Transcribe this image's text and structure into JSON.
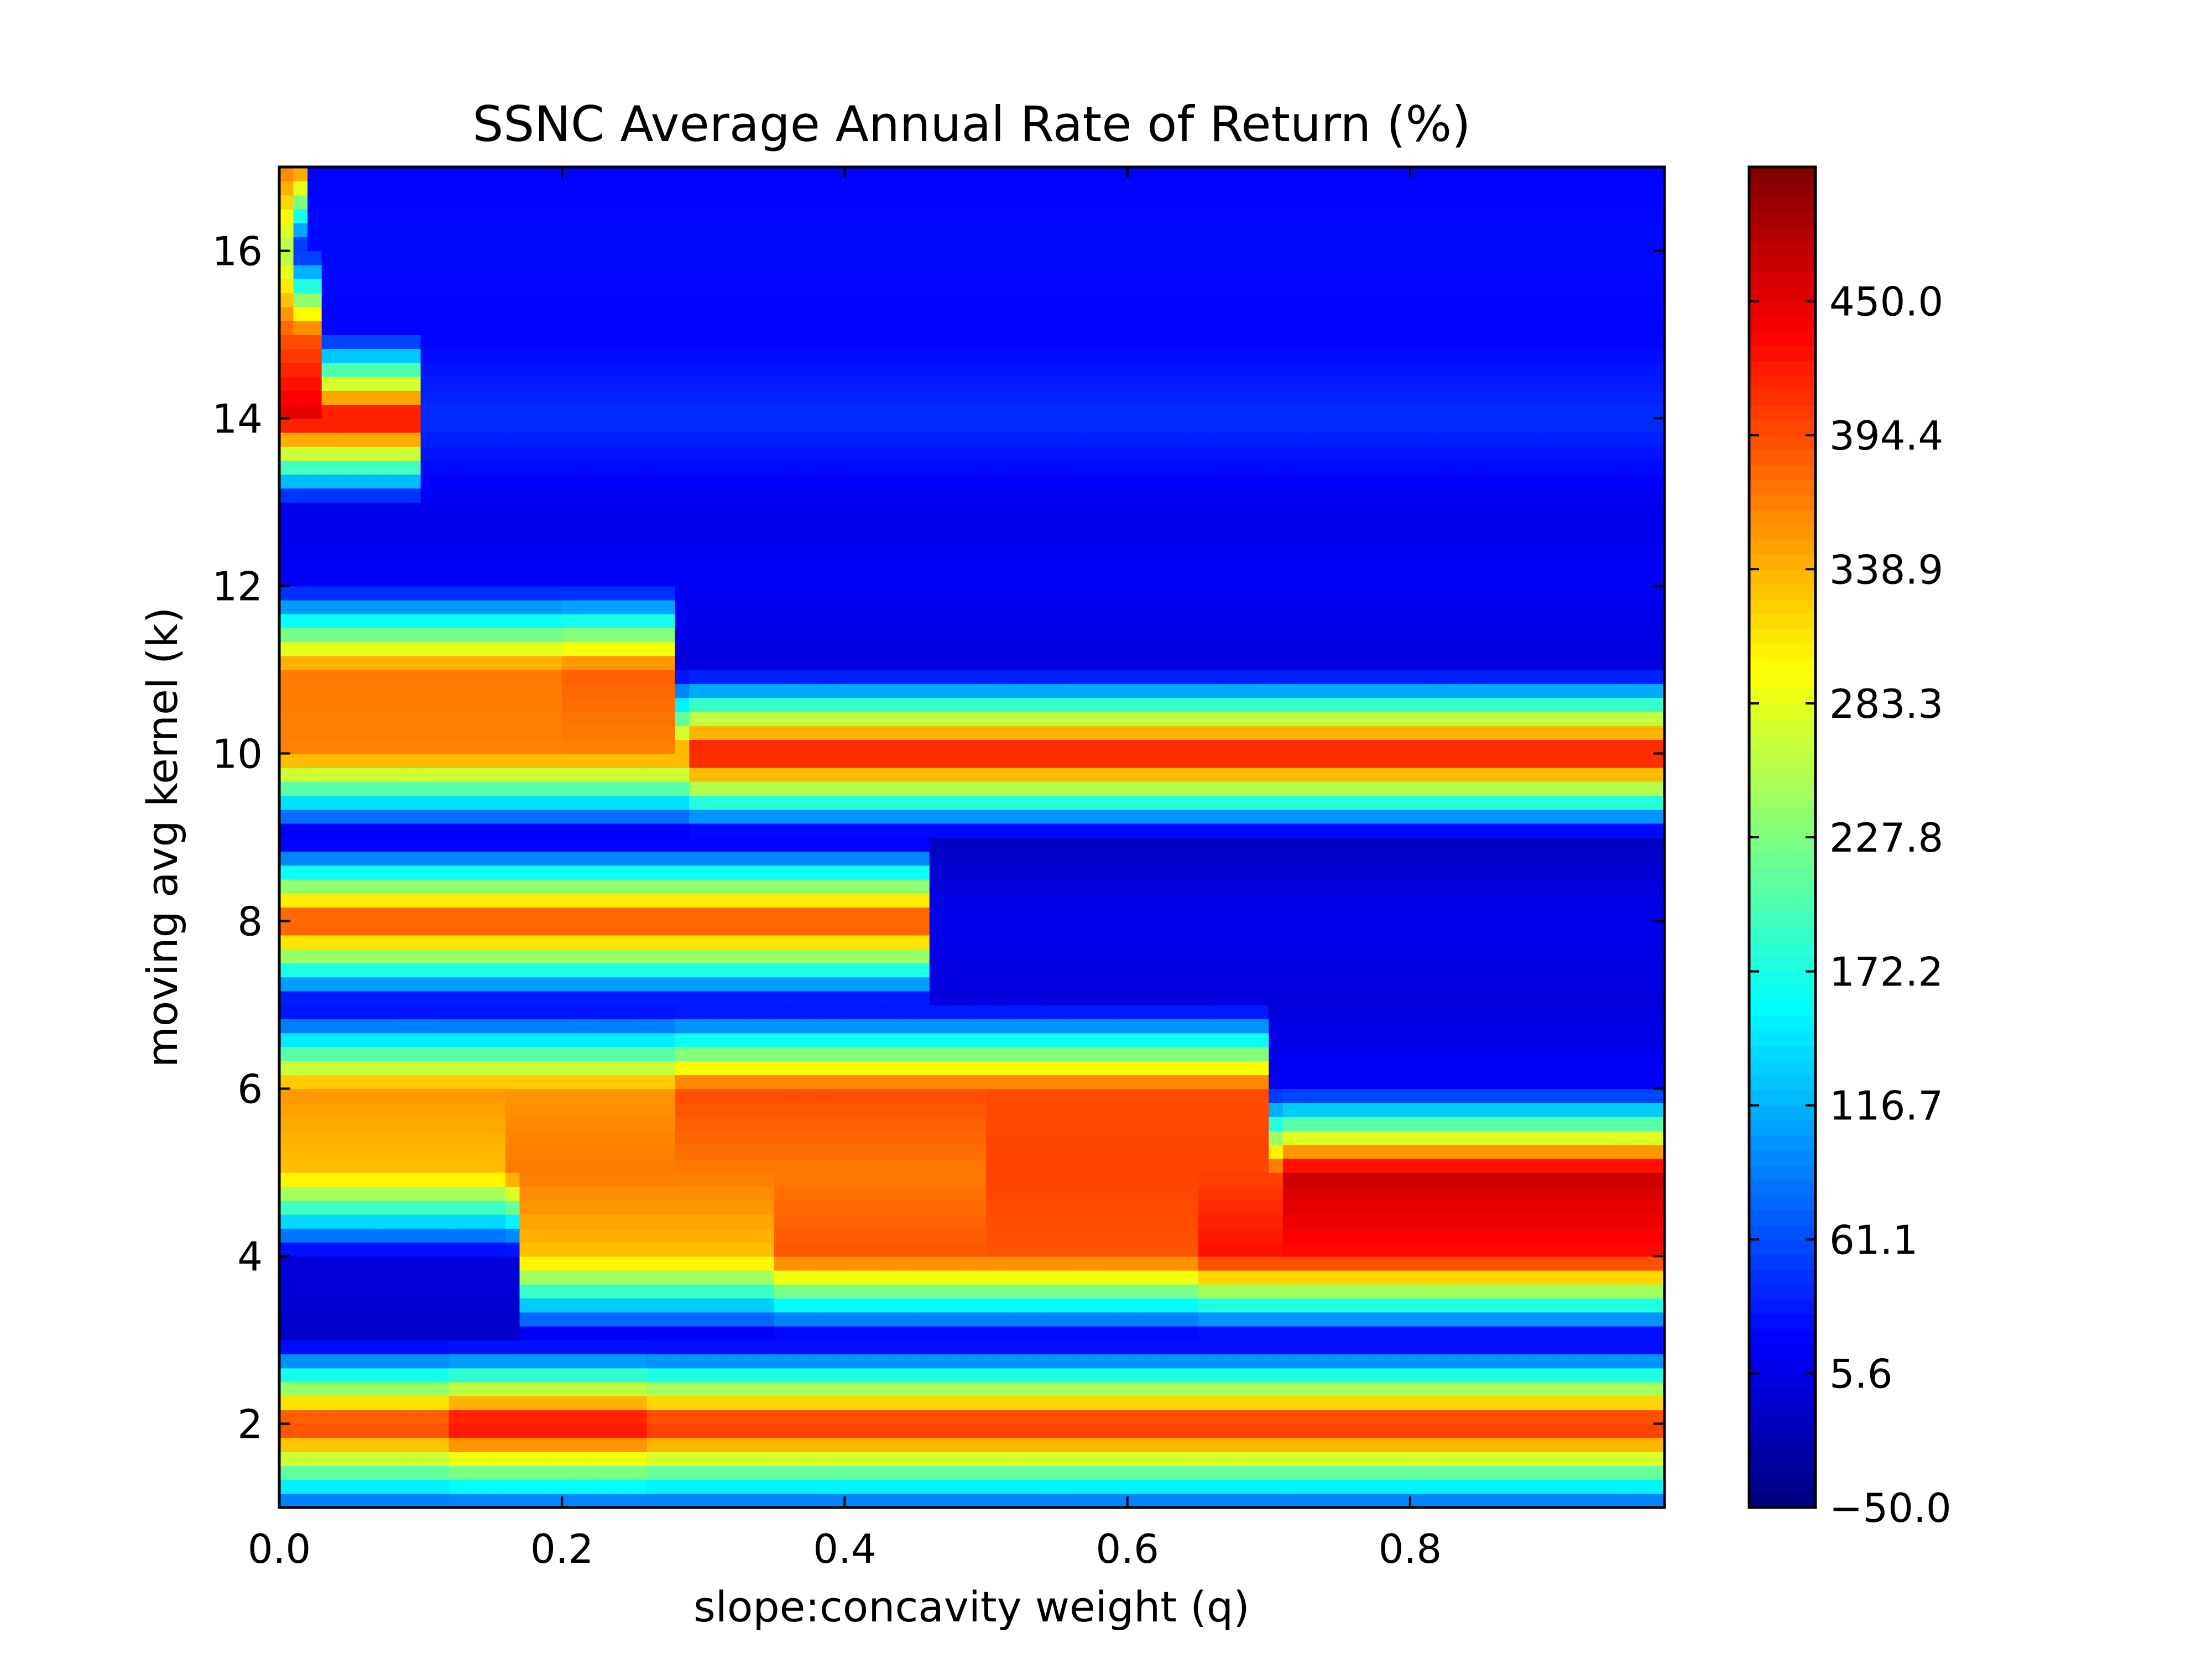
{
  "chart_data": {
    "type": "heatmap",
    "title": "SSNC Average Annual Rate of Return (%)",
    "xlabel": "slope:concavity weight (q)",
    "ylabel": "moving avg kernel (k)",
    "xlim": [
      0.0,
      0.98
    ],
    "ylim": [
      1,
      17
    ],
    "x_ticks": [
      0.0,
      0.2,
      0.4,
      0.6,
      0.8
    ],
    "x_tick_labels": [
      "0.0",
      "0.2",
      "0.4",
      "0.6",
      "0.8"
    ],
    "y_ticks": [
      2,
      4,
      6,
      8,
      10,
      12,
      14,
      16
    ],
    "y_tick_labels": [
      "2",
      "4",
      "6",
      "8",
      "10",
      "12",
      "14",
      "16"
    ],
    "x": [
      0.0,
      0.02,
      0.04,
      0.06,
      0.08,
      0.1,
      0.12,
      0.14,
      0.16,
      0.18,
      0.2,
      0.22,
      0.24,
      0.26,
      0.28,
      0.3,
      0.32,
      0.34,
      0.36,
      0.38,
      0.4,
      0.42,
      0.44,
      0.46,
      0.48,
      0.5,
      0.52,
      0.54,
      0.56,
      0.58,
      0.6,
      0.62,
      0.64,
      0.66,
      0.68,
      0.7,
      0.72,
      0.74,
      0.76,
      0.78,
      0.8,
      0.82,
      0.84,
      0.86,
      0.88,
      0.9,
      0.92,
      0.94,
      0.96,
      0.98
    ],
    "y": [
      1,
      2,
      3,
      4,
      5,
      6,
      7,
      8,
      9,
      10,
      11,
      12,
      13,
      14,
      15,
      16,
      17
    ],
    "bands": [
      {
        "k": 1,
        "segments": [
          {
            "q_start": 0.0,
            "q_end": 0.98,
            "value": 60
          }
        ]
      },
      {
        "k": 2,
        "segments": [
          {
            "q_start": 0.0,
            "q_end": 0.12,
            "value": 420
          },
          {
            "q_start": 0.12,
            "q_end": 0.26,
            "value": 455
          },
          {
            "q_start": 0.26,
            "q_end": 0.98,
            "value": 430
          }
        ]
      },
      {
        "k": 3,
        "segments": [
          {
            "q_start": 0.0,
            "q_end": 0.98,
            "value": -10
          }
        ]
      },
      {
        "k": 4,
        "segments": [
          {
            "q_start": 0.0,
            "q_end": 0.17,
            "value": 0
          },
          {
            "q_start": 0.17,
            "q_end": 0.35,
            "value": 330
          },
          {
            "q_start": 0.35,
            "q_end": 0.65,
            "value": 390
          },
          {
            "q_start": 0.65,
            "q_end": 0.98,
            "value": 430
          }
        ]
      },
      {
        "k": 5,
        "segments": [
          {
            "q_start": 0.0,
            "q_end": 0.16,
            "value": 330
          },
          {
            "q_start": 0.16,
            "q_end": 0.5,
            "value": 370
          },
          {
            "q_start": 0.5,
            "q_end": 0.71,
            "value": 400
          },
          {
            "q_start": 0.71,
            "q_end": 0.98,
            "value": 465
          }
        ]
      },
      {
        "k": 6,
        "segments": [
          {
            "q_start": 0.0,
            "q_end": 0.28,
            "value": 355
          },
          {
            "q_start": 0.28,
            "q_end": 0.7,
            "value": 395
          },
          {
            "q_start": 0.7,
            "q_end": 0.98,
            "value": 20
          }
        ]
      },
      {
        "k": 7,
        "segments": [
          {
            "q_start": 0.0,
            "q_end": 0.98,
            "value": 0
          }
        ]
      },
      {
        "k": 8,
        "segments": [
          {
            "q_start": 0.0,
            "q_end": 0.46,
            "value": 415
          },
          {
            "q_start": 0.46,
            "q_end": 0.98,
            "value": 10
          }
        ]
      },
      {
        "k": 9,
        "segments": [
          {
            "q_start": 0.0,
            "q_end": 0.98,
            "value": -15
          }
        ]
      },
      {
        "k": 10,
        "segments": [
          {
            "q_start": 0.0,
            "q_end": 0.29,
            "value": 365
          },
          {
            "q_start": 0.29,
            "q_end": 0.98,
            "value": 450
          }
        ]
      },
      {
        "k": 11,
        "segments": [
          {
            "q_start": 0.0,
            "q_end": 0.2,
            "value": 370
          },
          {
            "q_start": 0.2,
            "q_end": 0.28,
            "value": 385
          },
          {
            "q_start": 0.28,
            "q_end": 0.98,
            "value": 0
          }
        ]
      },
      {
        "k": 12,
        "segments": [
          {
            "q_start": 0.0,
            "q_end": 0.98,
            "value": 15
          }
        ]
      },
      {
        "k": 13,
        "segments": [
          {
            "q_start": 0.0,
            "q_end": 0.98,
            "value": 10
          }
        ]
      },
      {
        "k": 14,
        "segments": [
          {
            "q_start": 0.0,
            "q_end": 0.1,
            "value": 455
          },
          {
            "q_start": 0.1,
            "q_end": 0.98,
            "value": 45
          }
        ]
      },
      {
        "k": 15,
        "segments": [
          {
            "q_start": 0.0,
            "q_end": 0.03,
            "value": 390
          },
          {
            "q_start": 0.03,
            "q_end": 0.98,
            "value": 20
          }
        ]
      },
      {
        "k": 16,
        "segments": [
          {
            "q_start": 0.0,
            "q_end": 0.01,
            "value": 250
          },
          {
            "q_start": 0.01,
            "q_end": 0.98,
            "value": 25
          }
        ]
      },
      {
        "k": 17,
        "segments": [
          {
            "q_start": 0.0,
            "q_end": 0.02,
            "value": 370
          },
          {
            "q_start": 0.02,
            "q_end": 0.98,
            "value": 20
          }
        ]
      }
    ],
    "colorbar": {
      "colormap": "jet",
      "vmin": -50,
      "vmax": 505.6,
      "tick_values": [
        -50.0,
        5.6,
        61.1,
        116.7,
        172.2,
        227.8,
        283.3,
        338.9,
        394.4,
        450.0
      ],
      "tick_labels": [
        "−50.0",
        "5.6",
        "61.1",
        "116.7",
        "172.2",
        "227.8",
        "283.3",
        "338.9",
        "394.4",
        "450.0"
      ]
    },
    "grid": false,
    "legend": "none"
  }
}
